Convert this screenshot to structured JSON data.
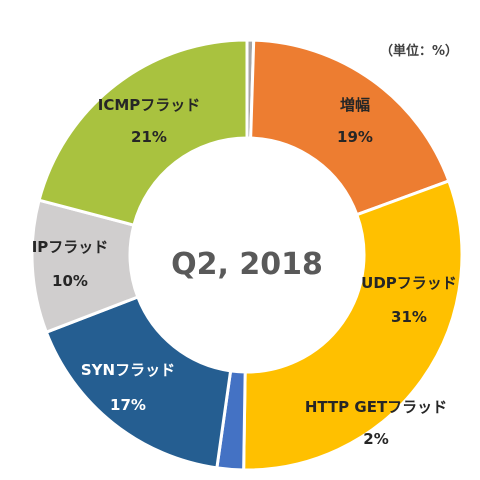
{
  "chart_data": {
    "type": "pie",
    "style": "donut",
    "center_label": "Q2, 2018",
    "unit_note": "（単位：%）",
    "slices": [
      {
        "name": "増幅",
        "value": 19,
        "label_value": "19%",
        "color": "#ED7D31"
      },
      {
        "name": "UDPフラッド",
        "value": 31,
        "label_value": "31%",
        "color": "#FFC000"
      },
      {
        "name": "HTTP GETフラッド",
        "value": 2,
        "label_value": "2%",
        "color": "#4472C4"
      },
      {
        "name": "SYNフラッド",
        "value": 17,
        "label_value": "17%",
        "color": "#255E91"
      },
      {
        "name": "IPフラッド",
        "value": 10,
        "label_value": "10%",
        "color": "#D0CECE"
      },
      {
        "name": "ICMPフラッド",
        "value": 21,
        "label_value": "21%",
        "color": "#A9C23F"
      }
    ],
    "gap_slice_color": "#A5A5A5",
    "gap_slice_value": 0.5
  }
}
